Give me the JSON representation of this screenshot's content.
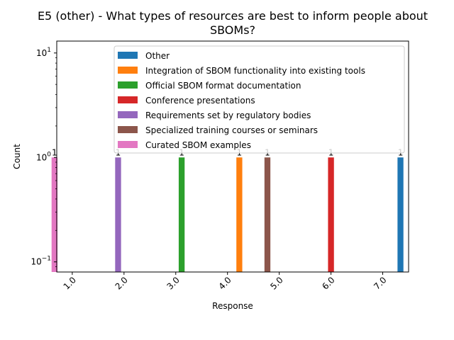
{
  "chart_data": {
    "type": "bar",
    "title_line1": "E5 (other) - What types of resources are best to inform people about",
    "title_line2": "SBOMs?",
    "xlabel": "Response",
    "ylabel": "Count",
    "yscale": "log",
    "ylim": [
      0.08,
      13
    ],
    "xlim": [
      0.7,
      7.5
    ],
    "x_ticks": [
      "1.0",
      "2.0",
      "3.0",
      "4.0",
      "5.0",
      "6.0",
      "7.0"
    ],
    "y_ticks": [
      {
        "value": 0.1,
        "base": "10",
        "exp": "−1"
      },
      {
        "value": 1,
        "base": "10",
        "exp": "0"
      },
      {
        "value": 10,
        "base": "10",
        "exp": "1"
      }
    ],
    "legend_position": "upper-right",
    "series": [
      {
        "name": "Other",
        "color": "#1f77b4",
        "x": 7.0,
        "value": 1,
        "label": "1"
      },
      {
        "name": "Integration of SBOM functionality into existing tools",
        "color": "#ff7f0e",
        "x": 4.0,
        "value": 1,
        "label": "1"
      },
      {
        "name": "Official SBOM format documentation",
        "color": "#2ca02c",
        "x": 3.0,
        "value": 1,
        "label": "1"
      },
      {
        "name": "Conference presentations",
        "color": "#d62728",
        "x": 6.0,
        "value": 1,
        "label": "1"
      },
      {
        "name": "Requirements set by regulatory bodies",
        "color": "#9467bd",
        "x": 2.0,
        "value": 1,
        "label": "1"
      },
      {
        "name": "Specialized training courses or seminars",
        "color": "#8c564b",
        "x": 5.0,
        "value": 1,
        "label": "1"
      },
      {
        "name": "Curated SBOM examples",
        "color": "#e377c2",
        "x": 1.0,
        "value": 1,
        "label": "1"
      }
    ]
  }
}
